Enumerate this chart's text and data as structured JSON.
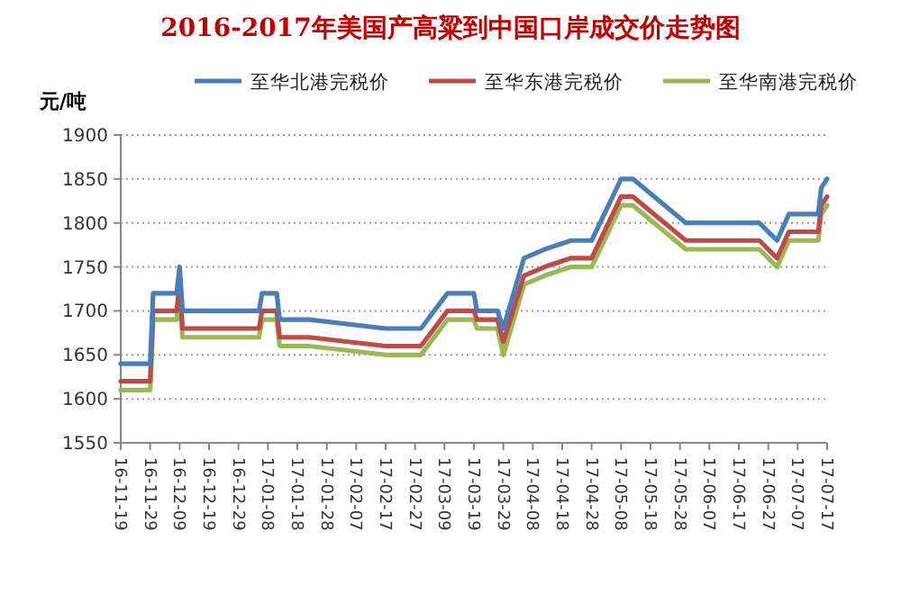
{
  "chart_data": {
    "type": "line",
    "title": "2016-2017年美国产高粱到中国口岸成交价走势图",
    "ylabel": "元/吨",
    "x": [
      "2016-11-19",
      "2016-11-29",
      "2016-11-30",
      "2016-12-08",
      "2016-12-09",
      "2016-12-10",
      "2017-01-05",
      "2017-01-06",
      "2017-01-11",
      "2017-01-12",
      "2017-01-22",
      "2017-02-17",
      "2017-03-01",
      "2017-03-10",
      "2017-03-19",
      "2017-03-20",
      "2017-03-27",
      "2017-03-29",
      "2017-04-05",
      "2017-04-12",
      "2017-04-21",
      "2017-04-28",
      "2017-05-08",
      "2017-05-12",
      "2017-05-30",
      "2017-06-24",
      "2017-06-30",
      "2017-07-04",
      "2017-07-14",
      "2017-07-15",
      "2017-07-17"
    ],
    "series": [
      {
        "name": "至华北港完税价",
        "color": "#4a7ebb",
        "values": [
          1640,
          1640,
          1720,
          1720,
          1750,
          1700,
          1700,
          1720,
          1720,
          1690,
          1690,
          1680,
          1680,
          1720,
          1720,
          1700,
          1700,
          1680,
          1760,
          1770,
          1780,
          1780,
          1850,
          1850,
          1800,
          1800,
          1780,
          1810,
          1810,
          1840,
          1850
        ]
      },
      {
        "name": "至华东港完税价",
        "color": "#be4b48",
        "values": [
          1620,
          1620,
          1700,
          1700,
          1730,
          1680,
          1680,
          1700,
          1700,
          1670,
          1670,
          1660,
          1660,
          1700,
          1700,
          1690,
          1690,
          1665,
          1740,
          1750,
          1760,
          1760,
          1830,
          1830,
          1780,
          1780,
          1760,
          1790,
          1790,
          1820,
          1830
        ]
      },
      {
        "name": "至华南港完税价",
        "color": "#98b954",
        "values": [
          1610,
          1610,
          1690,
          1690,
          1720,
          1670,
          1670,
          1690,
          1690,
          1660,
          1660,
          1650,
          1650,
          1690,
          1690,
          1680,
          1680,
          1650,
          1730,
          1740,
          1750,
          1750,
          1820,
          1820,
          1770,
          1770,
          1750,
          1780,
          1780,
          1810,
          1820
        ]
      }
    ],
    "xlim": [
      "2016-11-19",
      "2017-07-17"
    ],
    "xticks": [
      {
        "value": "2016-11-19",
        "label": "16-11-19"
      },
      {
        "value": "2016-11-29",
        "label": "16-11-29"
      },
      {
        "value": "2016-12-09",
        "label": "16-12-09"
      },
      {
        "value": "2016-12-19",
        "label": "16-12-19"
      },
      {
        "value": "2016-12-29",
        "label": "16-12-29"
      },
      {
        "value": "2017-01-08",
        "label": "17-01-08"
      },
      {
        "value": "2017-01-18",
        "label": "17-01-18"
      },
      {
        "value": "2017-01-28",
        "label": "17-01-28"
      },
      {
        "value": "2017-02-07",
        "label": "17-02-07"
      },
      {
        "value": "2017-02-17",
        "label": "17-02-17"
      },
      {
        "value": "2017-02-27",
        "label": "17-02-27"
      },
      {
        "value": "2017-03-09",
        "label": "17-03-09"
      },
      {
        "value": "2017-03-19",
        "label": "17-03-19"
      },
      {
        "value": "2017-03-29",
        "label": "17-03-29"
      },
      {
        "value": "2017-04-08",
        "label": "17-04-08"
      },
      {
        "value": "2017-04-18",
        "label": "17-04-18"
      },
      {
        "value": "2017-04-28",
        "label": "17-04-28"
      },
      {
        "value": "2017-05-08",
        "label": "17-05-08"
      },
      {
        "value": "2017-05-18",
        "label": "17-05-18"
      },
      {
        "value": "2017-05-28",
        "label": "17-05-28"
      },
      {
        "value": "2017-06-07",
        "label": "17-06-07"
      },
      {
        "value": "2017-06-17",
        "label": "17-06-17"
      },
      {
        "value": "2017-06-27",
        "label": "17-06-27"
      },
      {
        "value": "2017-07-07",
        "label": "17-07-07"
      },
      {
        "value": "2017-07-17",
        "label": "17-07-17"
      }
    ],
    "ylim": [
      1550,
      1900
    ],
    "yticks": [
      1550,
      1600,
      1650,
      1700,
      1750,
      1800,
      1850,
      1900
    ],
    "grid": "y",
    "legend": "top",
    "marker": "none",
    "line_style": "solid"
  }
}
